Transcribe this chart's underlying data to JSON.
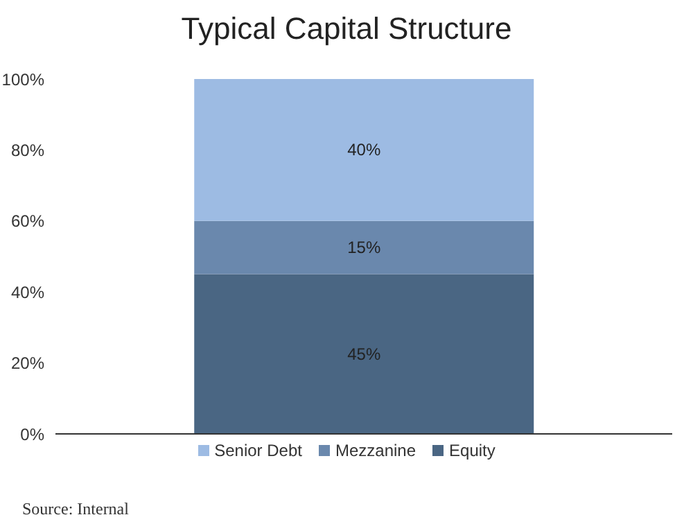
{
  "chart_data": {
    "type": "bar",
    "title": "Typical Capital Structure",
    "stacked": true,
    "categories": [
      null
    ],
    "series": [
      {
        "name": "Equity",
        "color": "#4a6683",
        "values": [
          45
        ],
        "value_labels": [
          "45%"
        ]
      },
      {
        "name": "Mezzanine",
        "color": "#6a88ad",
        "values": [
          15
        ],
        "value_labels": [
          "15%"
        ]
      },
      {
        "name": "Senior Debt",
        "color": "#9dbbe3",
        "values": [
          40
        ],
        "value_labels": [
          "40%"
        ]
      }
    ],
    "ylim": [
      0,
      100
    ],
    "yticks": [
      {
        "value": 0,
        "label": "0%"
      },
      {
        "value": 20,
        "label": "20%"
      },
      {
        "value": 40,
        "label": "40%"
      },
      {
        "value": 60,
        "label": "60%"
      },
      {
        "value": 80,
        "label": "80%"
      },
      {
        "value": 100,
        "label": "100%"
      }
    ],
    "grid": false,
    "legend": "bottom",
    "annotations": [
      "Source: Internal"
    ]
  }
}
